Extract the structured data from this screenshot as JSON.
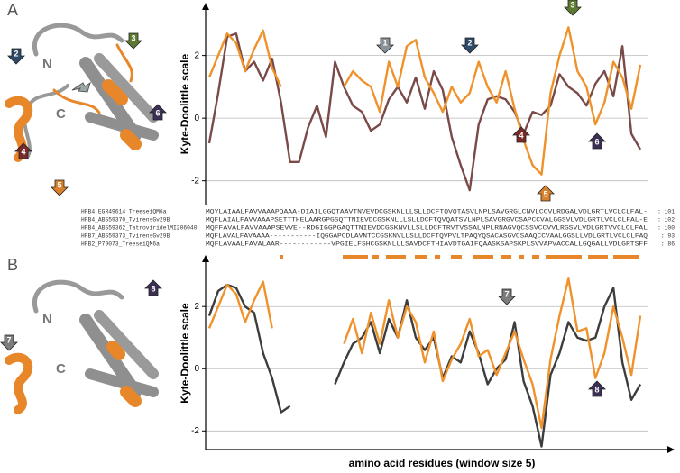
{
  "panel_labels": [
    "A",
    "B"
  ],
  "proteins": [
    {
      "n_label": "N",
      "c_label": "C",
      "arrows": [
        {
          "label": "2",
          "color": "#2e4a68"
        },
        {
          "label": "3",
          "color": "#5d7a33"
        },
        {
          "label": "4",
          "color": "#7a2a28"
        },
        {
          "label": "5",
          "color": "#d9822b"
        },
        {
          "label": "6",
          "color": "#3b2f55"
        }
      ]
    },
    {
      "n_label": "N",
      "c_label": "C",
      "arrows": [
        {
          "label": "7",
          "color": "#7d7d7d"
        },
        {
          "label": "8",
          "color": "#3b2f55"
        }
      ]
    }
  ],
  "alignment": {
    "rows": [
      {
        "name": "HFB4_EGR49614_TreeseiQM6a",
        "sequence": "MQYLAIAALFAVVAAAPQAAA-DIAILGGQTAAVTNVEVDCGSKNLLLSLLDCFTQVQTASVLNPLSAVGRGLCNVLCCVLRDGALVDLGRTLVCLCLFAL-",
        "length": ": 101"
      },
      {
        "name": "HFB4_ABS59370_TvirensGv29B",
        "sequence": "MQFLAIALFAVVAAAPSETTTHELAARGPGSQTTNIEVDCGSKNLLLSLLDCFTQVQATSVLNPLSAVGRGVCSAPCCVALGGSVLVDLGRTLVCLCLFAL-E",
        "length": ": 102"
      },
      {
        "name": "HFB4_ABS59362_TatroviridelMI206040",
        "sequence": "MQFFAVALFAVVAAAPSEVVE--RDGIGGPGAQTTNIEVDCGSKNVLLSLLDCFTRVTVSSALNPLRNAGVQCSSVCCVVLRGSVLVDLGRTVVCLCLFAL",
        "length": ": 100"
      },
      {
        "name": "HFB7_ABS59373_TvirensGv29B",
        "sequence": "MQFLAVALFAVAAAA-----------IQGGAPCDLAVNTCCGSKNVLLSLLDCFTQVPVLTPAQYQSACASGVCSAAQCCVAALGGSLLVDLGRTLVCLCLFAQ",
        "length": ": 93"
      },
      {
        "name": "HFB2_P79073_TreeseiQM6a",
        "sequence": "MQFLAVAALFAVALAAR------------VPGIELFSHCGSKNLLLSAVDCFTHIAVDTGAIFQAASKSAPSKPLSVVAPVACCALLGQGALLVDLGRTSFF",
        "length": ": 86"
      }
    ]
  },
  "chart_data": [
    {
      "type": "line",
      "y_label": "Kyte-Doolittle scale",
      "x": [
        0,
        1,
        2,
        3,
        4,
        5,
        6,
        7,
        8,
        9,
        10,
        11,
        12,
        13,
        14,
        15,
        16,
        17,
        18,
        19,
        20,
        21,
        22,
        23,
        24,
        25,
        26,
        27,
        28,
        29,
        30,
        31,
        32,
        33,
        34,
        35,
        36,
        37,
        38,
        39,
        40,
        41,
        42,
        43,
        44,
        45,
        46,
        47,
        48
      ],
      "xlim": [
        -0.4,
        48.8
      ],
      "ylim": [
        -2.7,
        3.6
      ],
      "yticks": [
        -2,
        0,
        2
      ],
      "grid": true,
      "series": [
        {
          "color": "#7a4a48",
          "values": [
            -0.8,
            0.8,
            2.6,
            2.7,
            1.5,
            1.8,
            1.2,
            1.9,
            0.5,
            -1.4,
            -1.4,
            -0.3,
            0.4,
            -0.6,
            1.8,
            1.0,
            0.4,
            0.2,
            -0.4,
            -0.2,
            0.6,
            1.0,
            0.5,
            1.3,
            0.3,
            1.5,
            0.9,
            -0.6,
            -1.5,
            -2.3,
            -0.2,
            0.6,
            0.7,
            0.6,
            0.2,
            -0.5,
            0.2,
            0.1,
            0.4,
            1.4,
            1.0,
            0.8,
            0.4,
            1.1,
            1.5,
            0.7,
            2.3,
            -0.5,
            -1.0
          ]
        },
        {
          "color": "#f0922b",
          "values": [
            1.3,
            2.0,
            2.7,
            2.4,
            1.5,
            2.2,
            2.8,
            1.6,
            1.0,
            null,
            null,
            null,
            null,
            null,
            null,
            1.0,
            1.5,
            1.2,
            1.0,
            0.2,
            1.8,
            1.0,
            2.3,
            2.5,
            1.3,
            0.8,
            0.2,
            1.0,
            0.5,
            0.8,
            1.8,
            1.0,
            0.5,
            1.5,
            0.3,
            -0.7,
            -1.5,
            -1.8,
            0.8,
            2.0,
            2.9,
            1.5,
            1.0,
            -0.2,
            0.5,
            1.8,
            1.3,
            0.3,
            1.7
          ]
        }
      ],
      "annotations": [
        {
          "label": "1",
          "color": "#8a9299"
        },
        {
          "label": "2",
          "color": "#2e4a68"
        },
        {
          "label": "3",
          "color": "#5d7a33"
        },
        {
          "label": "4",
          "color": "#7a2a28"
        },
        {
          "label": "5",
          "color": "#d9822b"
        },
        {
          "label": "6",
          "color": "#3b2f55"
        }
      ]
    },
    {
      "type": "line",
      "y_label": "Kyte-Doolittle scale",
      "x_label": "amino acid residues (window size 5)",
      "x": [
        0,
        1,
        2,
        3,
        4,
        5,
        6,
        7,
        8,
        9,
        10,
        11,
        12,
        13,
        14,
        15,
        16,
        17,
        18,
        19,
        20,
        21,
        22,
        23,
        24,
        25,
        26,
        27,
        28,
        29,
        30,
        31,
        32,
        33,
        34,
        35,
        36,
        37,
        38,
        39,
        40,
        41,
        42,
        43,
        44,
        45,
        46,
        47,
        48
      ],
      "xlim": [
        -0.4,
        48.8
      ],
      "ylim": [
        -2.6,
        3.6
      ],
      "yticks": [
        -2,
        0,
        2
      ],
      "grid": true,
      "series": [
        {
          "color": "#3d3d3d",
          "values": [
            1.7,
            2.5,
            2.7,
            2.6,
            2.0,
            1.8,
            0.5,
            -0.3,
            -1.4,
            -1.2,
            null,
            null,
            null,
            null,
            -0.5,
            0.2,
            0.8,
            1.0,
            1.5,
            0.5,
            1.6,
            1.0,
            2.2,
            1.0,
            0.6,
            1.0,
            -0.3,
            0.4,
            0.2,
            1.2,
            0.5,
            -0.5,
            0.0,
            0.3,
            1.5,
            -0.4,
            -1.2,
            -2.5,
            -0.2,
            0.5,
            1.5,
            1.0,
            0.9,
            1.0,
            2.0,
            2.6,
            0.2,
            -1.0,
            -0.5
          ]
        },
        {
          "color": "#f0922b",
          "values": [
            1.3,
            2.0,
            2.7,
            2.4,
            1.5,
            2.2,
            2.8,
            1.3,
            null,
            null,
            null,
            null,
            null,
            null,
            null,
            0.8,
            1.6,
            0.5,
            1.8,
            0.8,
            2.2,
            1.0,
            2.0,
            1.5,
            0.2,
            1.2,
            -0.4,
            0.3,
            0.8,
            1.6,
            0.4,
            0.6,
            -0.2,
            0.5,
            1.2,
            0.3,
            -0.5,
            -1.9,
            0.3,
            1.7,
            2.9,
            1.2,
            1.3,
            -0.3,
            0.5,
            2.0,
            1.0,
            -0.2,
            1.7
          ]
        }
      ],
      "annotations": [
        {
          "label": "7",
          "color": "#7d7d7d"
        },
        {
          "label": "8",
          "color": "#3b2f55"
        }
      ]
    }
  ]
}
